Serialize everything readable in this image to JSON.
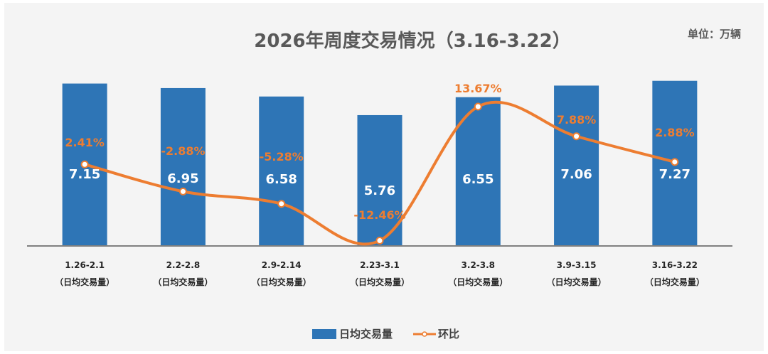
{
  "colors": {
    "bar": "#2e75b6",
    "line": "#ed7d31",
    "axis": "#808080",
    "background": "#f4f4f4"
  },
  "chart_data": {
    "type": "bar",
    "title": "2026年周度交易情况（3.16-3.22）",
    "unit_label": "单位：万辆",
    "categories": [
      "1.26-2.1",
      "2.2-2.8",
      "2.9-2.14",
      "2.23-3.1",
      "3.2-3.8",
      "3.9-3.15",
      "3.16-3.22"
    ],
    "category_sublabel": "（日均交易量）",
    "series": [
      {
        "name": "日均交易量",
        "type": "bar",
        "values": [
          7.15,
          6.95,
          6.58,
          5.76,
          6.55,
          7.06,
          7.27
        ],
        "labels": [
          "7.15",
          "6.95",
          "6.58",
          "5.76",
          "6.55",
          "7.06",
          "7.27"
        ]
      },
      {
        "name": "环比",
        "type": "line",
        "values": [
          2.41,
          -2.88,
          -5.28,
          -12.46,
          13.67,
          7.88,
          2.88
        ],
        "labels": [
          "2.41%",
          "-2.88%",
          "-5.28%",
          "-12.46%",
          "13.67%",
          "7.88%",
          "2.88%"
        ]
      }
    ],
    "bar_axis_range": [
      0,
      8.2
    ],
    "line_axis_range": [
      -13.5,
      14.5
    ],
    "legend_position": "bottom",
    "grid": false
  }
}
